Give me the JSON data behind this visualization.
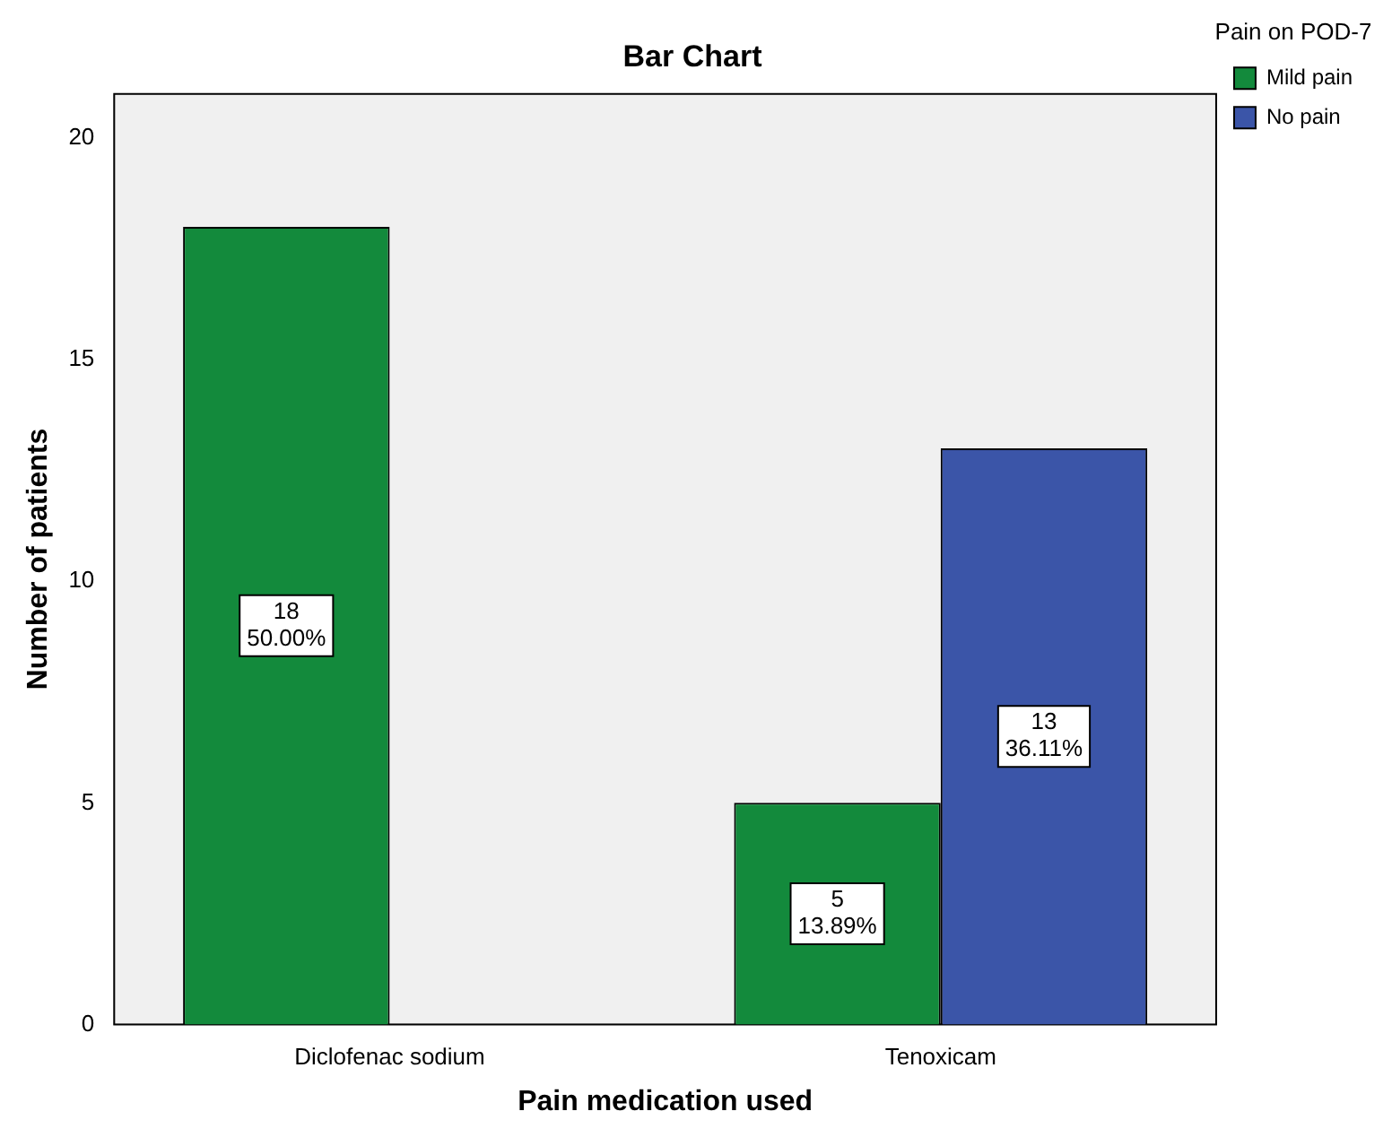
{
  "chart_data": {
    "type": "bar",
    "title": "Bar Chart",
    "xlabel": "Pain medication used",
    "ylabel": "Number of patients",
    "legend_title": "Pain on POD-7",
    "categories": [
      "Diclofenac sodium",
      "Tenoxicam"
    ],
    "series": [
      {
        "name": "Mild pain",
        "color": "#138a3c",
        "values": [
          18,
          5
        ],
        "value_labels": [
          "18\n50.00%",
          "5\n13.89%"
        ]
      },
      {
        "name": "No pain",
        "color": "#3b55a8",
        "values": [
          null,
          13
        ],
        "value_labels": [
          null,
          "13\n36.11%"
        ]
      }
    ],
    "ylim": [
      0,
      21
    ],
    "yticks": [
      0,
      5,
      10,
      15,
      20
    ],
    "grid": false,
    "legend": "top right"
  }
}
